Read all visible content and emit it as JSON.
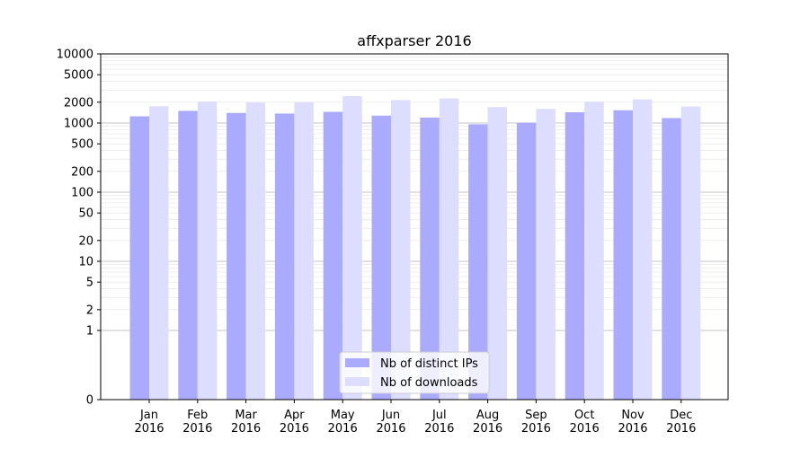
{
  "chart_data": {
    "type": "bar",
    "title": "affxparser 2016",
    "xlabel": "",
    "ylabel": "",
    "yscale": "symlog",
    "ylim": [
      0,
      10000
    ],
    "yticks": [
      0,
      1,
      2,
      5,
      10,
      20,
      50,
      100,
      200,
      500,
      1000,
      2000,
      5000,
      10000
    ],
    "categories": [
      "Jan\n2016",
      "Feb\n2016",
      "Mar\n2016",
      "Apr\n2016",
      "May\n2016",
      "Jun\n2016",
      "Jul\n2016",
      "Aug\n2016",
      "Sep\n2016",
      "Oct\n2016",
      "Nov\n2016",
      "Dec\n2016"
    ],
    "series": [
      {
        "name": "Nb of distinct IPs",
        "color": "#aaaaff",
        "values": [
          1250,
          1500,
          1400,
          1370,
          1450,
          1280,
          1200,
          960,
          1010,
          1430,
          1530,
          1180
        ]
      },
      {
        "name": "Nb of downloads",
        "color": "#ddddff",
        "values": [
          1750,
          2050,
          1980,
          2020,
          2450,
          2150,
          2270,
          1700,
          1600,
          2040,
          2200,
          1730
        ]
      }
    ],
    "grid": true,
    "legend_position": "bottom-center"
  }
}
